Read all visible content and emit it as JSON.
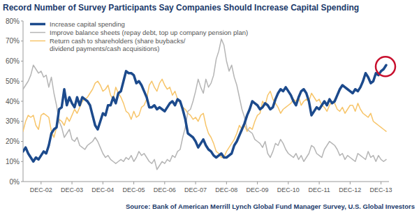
{
  "chart_data": {
    "type": "line",
    "title": "Record Number of Survey Participants Say Companies Should Increase Capital Spending",
    "source": "Source: Bank of American Merrill Lynch Global Fund Manager Survey, U.S. Global Investors",
    "categories": [
      null,
      null,
      null,
      null,
      null,
      null,
      null,
      "DEC-02",
      null,
      null,
      null,
      null,
      null,
      null,
      null,
      null,
      null,
      null,
      null,
      "DEC-03",
      null,
      null,
      null,
      null,
      null,
      null,
      null,
      null,
      null,
      null,
      null,
      "DEC-04",
      null,
      null,
      null,
      null,
      null,
      null,
      null,
      null,
      null,
      null,
      null,
      "DEC-05",
      null,
      null,
      null,
      null,
      null,
      null,
      null,
      null,
      null,
      null,
      null,
      "DEC-06",
      null,
      null,
      null,
      null,
      null,
      null,
      null,
      null,
      null,
      null,
      null,
      "DEC-07",
      null,
      null,
      null,
      null,
      null,
      null,
      null,
      null,
      null,
      null,
      null,
      "DEC-08",
      null,
      null,
      null,
      null,
      null,
      null,
      null,
      null,
      null,
      null,
      null,
      "DEC-09",
      null,
      null,
      null,
      null,
      null,
      null,
      null,
      null,
      null,
      null,
      null,
      "DEC-10",
      null,
      null,
      null,
      null,
      null,
      null,
      null,
      null,
      null,
      null,
      null,
      "DEC-11",
      null,
      null,
      null,
      null,
      null,
      null,
      null,
      null,
      null,
      null,
      null,
      "DEC-12",
      null,
      null,
      null,
      null,
      null,
      null,
      null,
      null,
      null,
      null,
      null,
      "DEC-13",
      null,
      null
    ],
    "series": [
      {
        "name": "Increase capital spending",
        "color": "#1c4a8c",
        "values": [
          15,
          17,
          14,
          12,
          10,
          12,
          11,
          13,
          15,
          14,
          18,
          24,
          26,
          27,
          36,
          37,
          46,
          38,
          42,
          39,
          37,
          42,
          38,
          42,
          41,
          40,
          38,
          33,
          28,
          26,
          30,
          34,
          33,
          38,
          38,
          42,
          39,
          44,
          45,
          50,
          55,
          54,
          54,
          53,
          49,
          50,
          48,
          45,
          42,
          37,
          37,
          38,
          36,
          37,
          36,
          35,
          37,
          39,
          40,
          38,
          41,
          40,
          36,
          31,
          24,
          23,
          22,
          20,
          17,
          19,
          21,
          18,
          16,
          15,
          13,
          12,
          13,
          14,
          12,
          12,
          13,
          14,
          18,
          20,
          23,
          26,
          29,
          33,
          36,
          40,
          39,
          38,
          36,
          37,
          39,
          38,
          36,
          37,
          41,
          44,
          46,
          45,
          47,
          45,
          43,
          40,
          38,
          42,
          45,
          46,
          44,
          40,
          33,
          35,
          37,
          36,
          38,
          40,
          38,
          41,
          39,
          40,
          43,
          46,
          48,
          47,
          46,
          45,
          44,
          46,
          45,
          47,
          50,
          54,
          52,
          49,
          50,
          54,
          53,
          55,
          56,
          58
        ]
      },
      {
        "name": "Improve balance sheets (repay debt, top up company pension plan)",
        "color": "#b5b5b5",
        "values": [
          46,
          48,
          50,
          53,
          58,
          56,
          54,
          55,
          52,
          53,
          47,
          52,
          44,
          38,
          30,
          27,
          22,
          24,
          26,
          21,
          20,
          22,
          18,
          17,
          16,
          18,
          19,
          20,
          22,
          20,
          17,
          14,
          12,
          13,
          11,
          10,
          9,
          10,
          11,
          10,
          12,
          11,
          13,
          10,
          12,
          15,
          13,
          14,
          12,
          10,
          9,
          11,
          6,
          8,
          10,
          9,
          11,
          10,
          13,
          12,
          15,
          16,
          22,
          27,
          35,
          36,
          40,
          45,
          51,
          47,
          44,
          51,
          47,
          49,
          53,
          61,
          65,
          71,
          68,
          60,
          55,
          58,
          52,
          48,
          42,
          36,
          32,
          26,
          25,
          24,
          21,
          20,
          19,
          17,
          20,
          14,
          12,
          15,
          19,
          18,
          21,
          19,
          16,
          14,
          13,
          12,
          14,
          11,
          13,
          10,
          12,
          14,
          18,
          17,
          14,
          13,
          12,
          16,
          18,
          20,
          19,
          18,
          16,
          13,
          14,
          11,
          13,
          12,
          11,
          10,
          14,
          13,
          12,
          11,
          15,
          12,
          13,
          10,
          13,
          11,
          10,
          11
        ]
      },
      {
        "name": "Return cash to shareholders (share buybacks/ dividend payments/cash acquisitions)",
        "color": "#f7c56a",
        "values": [
          25,
          30,
          33,
          32,
          33,
          28,
          26,
          33,
          34,
          33,
          32,
          25,
          22,
          27,
          31,
          30,
          28,
          32,
          30,
          33,
          36,
          34,
          37,
          40,
          41,
          42,
          44,
          46,
          49,
          50,
          48,
          45,
          46,
          48,
          43,
          41,
          47,
          44,
          42,
          39,
          35,
          34,
          31,
          35,
          32,
          33,
          37,
          38,
          41,
          48,
          50,
          47,
          45,
          49,
          51,
          48,
          46,
          47,
          43,
          45,
          41,
          39,
          37,
          36,
          34,
          33,
          31,
          32,
          30,
          33,
          34,
          28,
          24,
          22,
          19,
          15,
          14,
          12,
          12,
          15,
          17,
          19,
          21,
          24,
          28,
          26,
          28,
          25,
          27,
          26,
          30,
          33,
          34,
          40,
          38,
          43,
          45,
          41,
          39,
          37,
          34,
          36,
          37,
          38,
          39,
          41,
          40,
          42,
          38,
          40,
          41,
          40,
          44,
          42,
          40,
          41,
          38,
          37,
          35,
          38,
          40,
          39,
          36,
          35,
          37,
          34,
          36,
          38,
          38,
          35,
          39,
          36,
          34,
          33,
          32,
          34,
          30,
          29,
          28,
          27,
          26,
          25
        ]
      }
    ],
    "ylim": [
      0,
      80
    ],
    "yticks": [
      {
        "value": 0,
        "label": "0%"
      },
      {
        "value": 10,
        "label": "10%"
      },
      {
        "value": 20,
        "label": "20%"
      },
      {
        "value": 30,
        "label": "30%"
      },
      {
        "value": 40,
        "label": "40%"
      },
      {
        "value": 50,
        "label": "50%"
      },
      {
        "value": 60,
        "label": "60%"
      },
      {
        "value": 70,
        "label": "70%"
      },
      {
        "value": 80,
        "label": "80%"
      }
    ],
    "grid": false,
    "legend": "top-left"
  }
}
